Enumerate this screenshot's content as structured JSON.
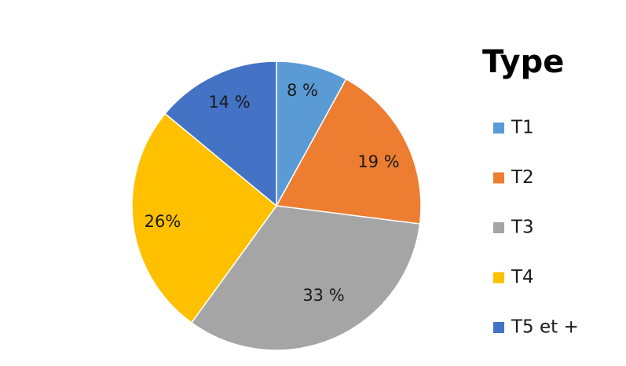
{
  "chart_data": {
    "type": "pie",
    "legend_title": "Type",
    "legend_position": "right",
    "start_angle_deg": 0,
    "direction": "clockwise",
    "slices": [
      {
        "category": "T1",
        "value": 8,
        "label": "8 %",
        "color": "#5B9BD5"
      },
      {
        "category": "T2",
        "value": 19,
        "label": "19 %",
        "color": "#ED7D31"
      },
      {
        "category": "T3",
        "value": 33,
        "label": "33 %",
        "color": "#A5A5A5"
      },
      {
        "category": "T4",
        "value": 26,
        "label": "26%",
        "color": "#FFC000"
      },
      {
        "category": "T5 et +",
        "value": 14,
        "label": "14 %",
        "color": "#4472C4"
      }
    ]
  }
}
